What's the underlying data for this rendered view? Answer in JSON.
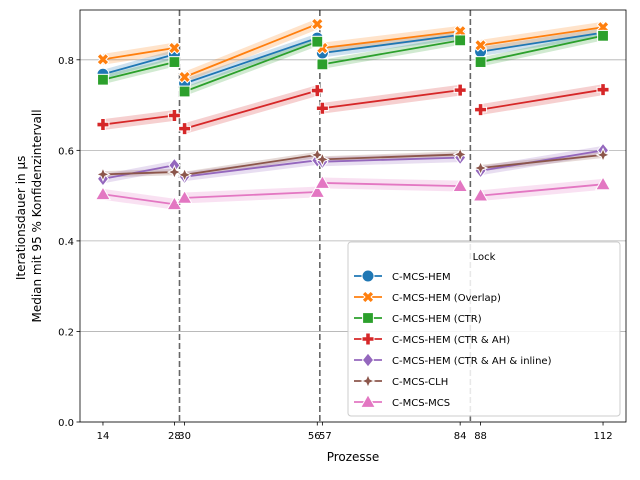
{
  "chart_data": {
    "type": "line",
    "xlabel": "Prozesse",
    "ylabel_lines": [
      "Iterationsdauer in µs",
      "Median mit 95 % Konfidenzintervall"
    ],
    "xlim": [
      9.5,
      116.5
    ],
    "ylim": [
      0,
      0.91
    ],
    "xticks": [
      14,
      28,
      30,
      56,
      57,
      84,
      88,
      112
    ],
    "xtick_labels": [
      "14",
      "28",
      "30",
      "56",
      "57",
      "84",
      "88",
      "112"
    ],
    "yticks": [
      0.0,
      0.2,
      0.4,
      0.6,
      0.8
    ],
    "ytick_labels": [
      "0.0",
      "0.2",
      "0.4",
      "0.6",
      "0.8"
    ],
    "grid": "y",
    "vlines": [
      29,
      56.5,
      86
    ],
    "legend": {
      "title": "Lock",
      "placement": "lower-right"
    },
    "segments": [
      [
        14,
        28
      ],
      [
        30,
        56
      ],
      [
        57,
        84
      ],
      [
        88,
        112
      ]
    ],
    "x": [
      14,
      28,
      30,
      56,
      57,
      84,
      88,
      112
    ],
    "series": [
      {
        "name": "C-MCS-HEM",
        "color": "#1f77b4",
        "marker": "circle",
        "values": [
          0.768,
          0.812,
          0.748,
          0.848,
          0.815,
          0.855,
          0.818,
          0.86
        ],
        "ci": 0.01
      },
      {
        "name": "C-MCS-HEM (Overlap)",
        "color": "#ff7f0e",
        "marker": "x",
        "values": [
          0.801,
          0.826,
          0.762,
          0.879,
          0.826,
          0.863,
          0.832,
          0.872
        ],
        "ci": 0.012
      },
      {
        "name": "C-MCS-HEM (CTR)",
        "color": "#2ca02c",
        "marker": "square",
        "values": [
          0.756,
          0.795,
          0.73,
          0.84,
          0.79,
          0.843,
          0.795,
          0.853
        ],
        "ci": 0.01
      },
      {
        "name": "C-MCS-HEM (CTR & AH)",
        "color": "#d62728",
        "marker": "plus",
        "values": [
          0.657,
          0.677,
          0.648,
          0.732,
          0.693,
          0.733,
          0.69,
          0.734
        ],
        "ci": 0.012
      },
      {
        "name": "C-MCS-HEM (CTR & AH & inline)",
        "color": "#9467bd",
        "marker": "diamond",
        "values": [
          0.537,
          0.567,
          0.542,
          0.578,
          0.575,
          0.584,
          0.555,
          0.6
        ],
        "ci": 0.01
      },
      {
        "name": "C-MCS-CLH",
        "color": "#8c564b",
        "marker": "star",
        "values": [
          0.547,
          0.552,
          0.546,
          0.59,
          0.58,
          0.591,
          0.561,
          0.59
        ],
        "ci": 0.007
      },
      {
        "name": "C-MCS-MCS",
        "color": "#e377c2",
        "marker": "triangle",
        "values": [
          0.503,
          0.481,
          0.495,
          0.508,
          0.528,
          0.521,
          0.5,
          0.525
        ],
        "ci": 0.012
      }
    ]
  }
}
